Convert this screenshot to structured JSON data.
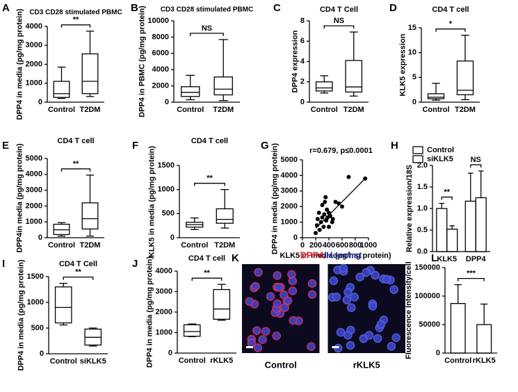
{
  "chart_data": [
    {
      "type": "box",
      "panel": "A",
      "title": "CD3 CD28 stimulated PBMC",
      "y_label": "DPP4 in media (pg/mg protein)",
      "categories": [
        "Control",
        "T2DM"
      ],
      "significance": "**",
      "boxes": [
        {
          "min": 200,
          "q1": 250,
          "median": 450,
          "q3": 1100,
          "max": 1850
        },
        {
          "min": 300,
          "q1": 450,
          "median": 1100,
          "q3": 2550,
          "max": 3750
        }
      ],
      "ylim": [
        0,
        4000
      ],
      "yticks": [
        0,
        1000,
        2000,
        3000,
        4000
      ]
    },
    {
      "type": "box",
      "panel": "B",
      "title": "CD3 CD28 stimulated PBMC",
      "y_label": "DPP4 in PBMC (pg/mg protein)",
      "categories": [
        "Control",
        "T2DM"
      ],
      "significance": "NS",
      "boxes": [
        {
          "min": 300,
          "q1": 700,
          "median": 1200,
          "q3": 1900,
          "max": 3300
        },
        {
          "min": 200,
          "q1": 900,
          "median": 1600,
          "q3": 3100,
          "max": 7700
        }
      ],
      "ylim": [
        0,
        10000
      ],
      "yticks": [
        0,
        2000,
        4000,
        6000,
        8000,
        10000
      ]
    },
    {
      "type": "box",
      "panel": "C",
      "title": "CD4 T Cell",
      "y_label": "DPP4 expression",
      "categories": [
        "Control",
        "T2DM"
      ],
      "significance": "NS",
      "boxes": [
        {
          "min": 0.9,
          "q1": 1.1,
          "median": 1.4,
          "q3": 2.0,
          "max": 2.6
        },
        {
          "min": 0.6,
          "q1": 1.0,
          "median": 1.5,
          "q3": 4.1,
          "max": 6.9
        }
      ],
      "ylim": [
        0,
        8
      ],
      "yticks": [
        0,
        2,
        4,
        6,
        8
      ]
    },
    {
      "type": "box",
      "panel": "D",
      "title": "CD4 T cell",
      "y_label": "KLK5 expression",
      "categories": [
        "Control",
        "T2DM"
      ],
      "significance": "*",
      "boxes": [
        {
          "min": 0.4,
          "q1": 0.7,
          "median": 1.0,
          "q3": 1.7,
          "max": 3.8
        },
        {
          "min": 0.5,
          "q1": 1.5,
          "median": 2.4,
          "q3": 8.3,
          "max": 13.5
        }
      ],
      "ylim": [
        0,
        15
      ],
      "yticks": [
        0,
        5,
        10,
        15
      ]
    },
    {
      "type": "box",
      "panel": "E",
      "title": "CD4 T cell",
      "y_label": "DPP4in media (pg/mg protein)",
      "categories": [
        "Control",
        "T2DM"
      ],
      "significance": "**",
      "boxes": [
        {
          "min": 100,
          "q1": 200,
          "median": 500,
          "q3": 850,
          "max": 950
        },
        {
          "min": 100,
          "q1": 550,
          "median": 1200,
          "q3": 2200,
          "max": 3950
        }
      ],
      "ylim": [
        0,
        5000
      ],
      "yticks": [
        0,
        1000,
        2000,
        3000,
        4000,
        5000
      ]
    },
    {
      "type": "box",
      "panel": "F",
      "title": "CD4 T cell",
      "y_label": "KLK5 in media (pg/mg protein)",
      "categories": [
        "Control",
        "T2DM"
      ],
      "significance": "**",
      "boxes": [
        {
          "min": 170,
          "q1": 220,
          "median": 270,
          "q3": 320,
          "max": 410
        },
        {
          "min": 200,
          "q1": 300,
          "median": 380,
          "q3": 600,
          "max": 1000
        }
      ],
      "ylim": [
        0,
        1500
      ],
      "yticks": [
        0,
        500,
        1000,
        1500
      ]
    },
    {
      "type": "scatter",
      "panel": "G",
      "annotation": "r=0.679, p≤0.0001",
      "x_label": "KLK5 in media (pg/mg protein)",
      "y_label": "DPP4 in media (pg/mg protein)",
      "x": [
        200,
        220,
        230,
        250,
        260,
        280,
        300,
        300,
        320,
        330,
        340,
        350,
        360,
        370,
        380,
        400,
        400,
        420,
        450,
        460,
        500,
        550,
        600,
        700,
        950
      ],
      "y": [
        300,
        800,
        1200,
        1600,
        500,
        1000,
        1300,
        2100,
        700,
        1500,
        2300,
        2600,
        1100,
        1800,
        1300,
        700,
        1600,
        1400,
        1000,
        1200,
        2300,
        2200,
        2000,
        3900,
        3800
      ],
      "fit": {
        "x": [
          200,
          950
        ],
        "y": [
          600,
          3800
        ]
      },
      "xlim": [
        0,
        1000
      ],
      "xticks": [
        0,
        200,
        400,
        600,
        800,
        1000
      ],
      "ylim": [
        0,
        5000
      ],
      "yticks": [
        0,
        1000,
        2000,
        3000,
        4000,
        5000
      ]
    },
    {
      "type": "bar",
      "panel": "H",
      "y_label": "Relative expression/18S",
      "categories": [
        "KLK5",
        "DPP4"
      ],
      "significance": [
        "**",
        "NS"
      ],
      "series": [
        {
          "name": "Control",
          "color": "#000000",
          "values": [
            1.0,
            1.17
          ],
          "errors": [
            0.12,
            0.65
          ]
        },
        {
          "name": "siKLK5",
          "color": "#ffffff",
          "values": [
            0.52,
            1.25
          ],
          "errors": [
            0.08,
            0.62
          ]
        }
      ],
      "ylim": [
        0,
        2.0
      ],
      "yticks": [
        {
          "value": 0,
          "label": "0.0"
        },
        0.5,
        {
          "value": 1,
          "label": "1.0"
        },
        1.5,
        {
          "value": 2,
          "label": "2.0"
        }
      ]
    },
    {
      "type": "box",
      "panel": "I",
      "title": "CD4 T Cell",
      "y_label": "DPP4 in media (pg/mg protein)",
      "categories": [
        "Control",
        "siKLK5"
      ],
      "significance": "**",
      "boxes": [
        {
          "min": 560,
          "q1": 600,
          "median": 900,
          "q3": 1300,
          "max": 1370
        },
        {
          "min": 150,
          "q1": 170,
          "median": 320,
          "q3": 480,
          "max": 500
        }
      ],
      "ylim": [
        0,
        1500
      ],
      "yticks": [
        0,
        500,
        1000,
        1500
      ]
    },
    {
      "type": "box",
      "panel": "J",
      "title": "CD4 T cell",
      "y_label": "DPP4 in media (pg/mg protein)",
      "categories": [
        "Control",
        "rKLK5"
      ],
      "significance": "**",
      "boxes": [
        {
          "min": 800,
          "q1": 820,
          "median": 1050,
          "q3": 1380,
          "max": 1420
        },
        {
          "min": 1600,
          "q1": 1650,
          "median": 2150,
          "q3": 3100,
          "max": 3350
        }
      ],
      "ylim": [
        0,
        4000
      ],
      "yticks": [
        0,
        1000,
        2000,
        3000,
        4000
      ]
    },
    {
      "type": "image",
      "panel": "K",
      "title": [
        {
          "text": "DPP4",
          "color": "#e0202f"
        },
        {
          "text": "/Hoechst",
          "color": "#2f3aa8"
        }
      ],
      "categories": [
        "Control",
        "rKLK5"
      ]
    },
    {
      "type": "bar",
      "panel": "L",
      "y_label": "Fluorescence Intensity/cell",
      "categories": [
        "Control",
        "rKLK5"
      ],
      "significance": "***",
      "series": [
        {
          "color": "#ffffff",
          "values": [
            87000,
            50000
          ],
          "errors": [
            33000,
            36000
          ]
        }
      ],
      "ylim": [
        0,
        150000
      ],
      "yticks": [
        0,
        50000,
        100000,
        150000
      ]
    }
  ]
}
